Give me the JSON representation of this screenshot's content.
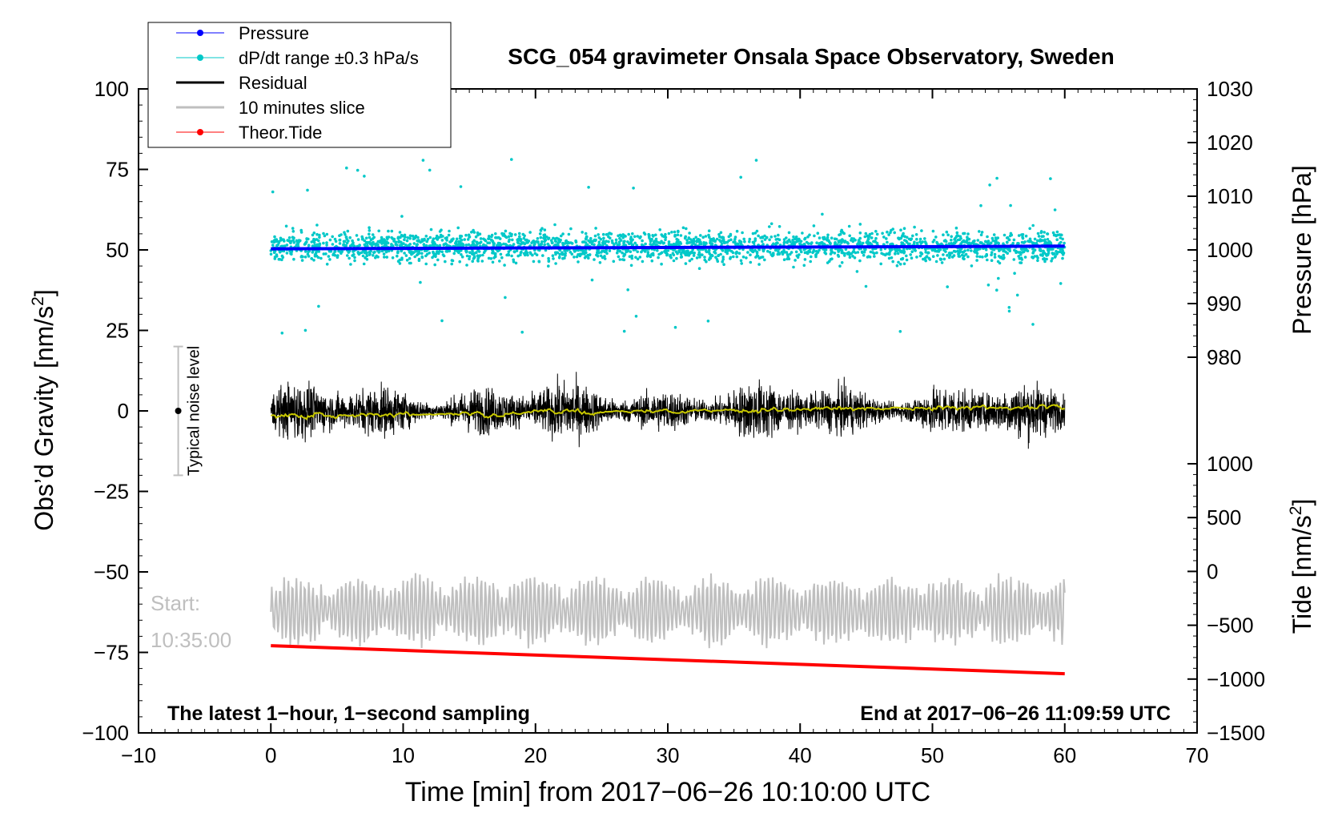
{
  "chart_data": {
    "type": "line",
    "title": "SCG_054 gravimeter Onsala Space Observatory, Sweden",
    "xlabel": "Time [min] from 2017−06−26 10:10:00 UTC",
    "ylabel_left": "Obs’d Gravity [nm/s²]",
    "ylabel_right_top": "Pressure [hPa]",
    "ylabel_right_bottom": "Tide [nm/s²]",
    "xlim": [
      -10,
      70
    ],
    "ylim_left": [
      -100,
      100
    ],
    "x_ticks": [
      "−10",
      "0",
      "10",
      "20",
      "30",
      "40",
      "50",
      "60",
      "70"
    ],
    "y_ticks_left": [
      "100",
      "75",
      "50",
      "25",
      "0",
      "−25",
      "−50",
      "−75",
      "−100"
    ],
    "pressure_axis": {
      "ylim": [
        980,
        1030
      ],
      "ticks": [
        "1030",
        "1020",
        "1010",
        "1000",
        "990",
        "980"
      ]
    },
    "tide_axis": {
      "ylim": [
        -1500,
        1000
      ],
      "ticks": [
        "1000",
        "500",
        "0",
        "−500",
        "−1000",
        "−1500"
      ]
    },
    "legend": {
      "position": "top-left",
      "entries": [
        {
          "label": "Pressure",
          "color": "#0000ff",
          "marker": "dot"
        },
        {
          "label": "dP/dt range ±0.3 hPa/s",
          "color": "#00c8c8",
          "marker": "dot"
        },
        {
          "label": "Residual",
          "color": "#000000",
          "marker": "line"
        },
        {
          "label": "10 minutes slice",
          "color": "#bfbfbf",
          "marker": "line"
        },
        {
          "label": "Theor.Tide",
          "color": "#ff0000",
          "marker": "dot"
        }
      ]
    },
    "series": [
      {
        "name": "Pressure",
        "axis": "pressure",
        "color": "#0000ff",
        "x": [
          0,
          60
        ],
        "y": [
          1000.2,
          1000.7
        ]
      },
      {
        "name": "dP/dt range ±0.3 hPa/s",
        "axis": "left",
        "color": "#00c8c8",
        "center": 51,
        "spread": 6,
        "x_range": [
          0,
          60
        ]
      },
      {
        "name": "Residual",
        "axis": "left",
        "color": "#000000",
        "center": 0,
        "spread": 9,
        "x_range": [
          0,
          60
        ]
      },
      {
        "name": "Residual smoothed",
        "axis": "left",
        "color": "#c8c800",
        "center": 0,
        "spread": 1.5,
        "x_range": [
          0,
          60
        ]
      },
      {
        "name": "10 minutes slice",
        "axis": "left",
        "color": "#bfbfbf",
        "center": -62,
        "spread": 10,
        "x_range": [
          0,
          60
        ]
      },
      {
        "name": "Theor.Tide",
        "axis": "tide",
        "color": "#ff0000",
        "x": [
          0,
          60
        ],
        "y": [
          -690,
          -950
        ]
      }
    ],
    "noise_indicator": {
      "label": "Typical noise level",
      "x": -7,
      "center": 0,
      "low": -20,
      "high": 20
    },
    "annotations": {
      "start_label": "Start:",
      "start_time": "10:35:00",
      "footer_left": "The latest 1−hour, 1−second sampling",
      "footer_right": "End at 2017−06−26 11:09:59 UTC"
    }
  }
}
